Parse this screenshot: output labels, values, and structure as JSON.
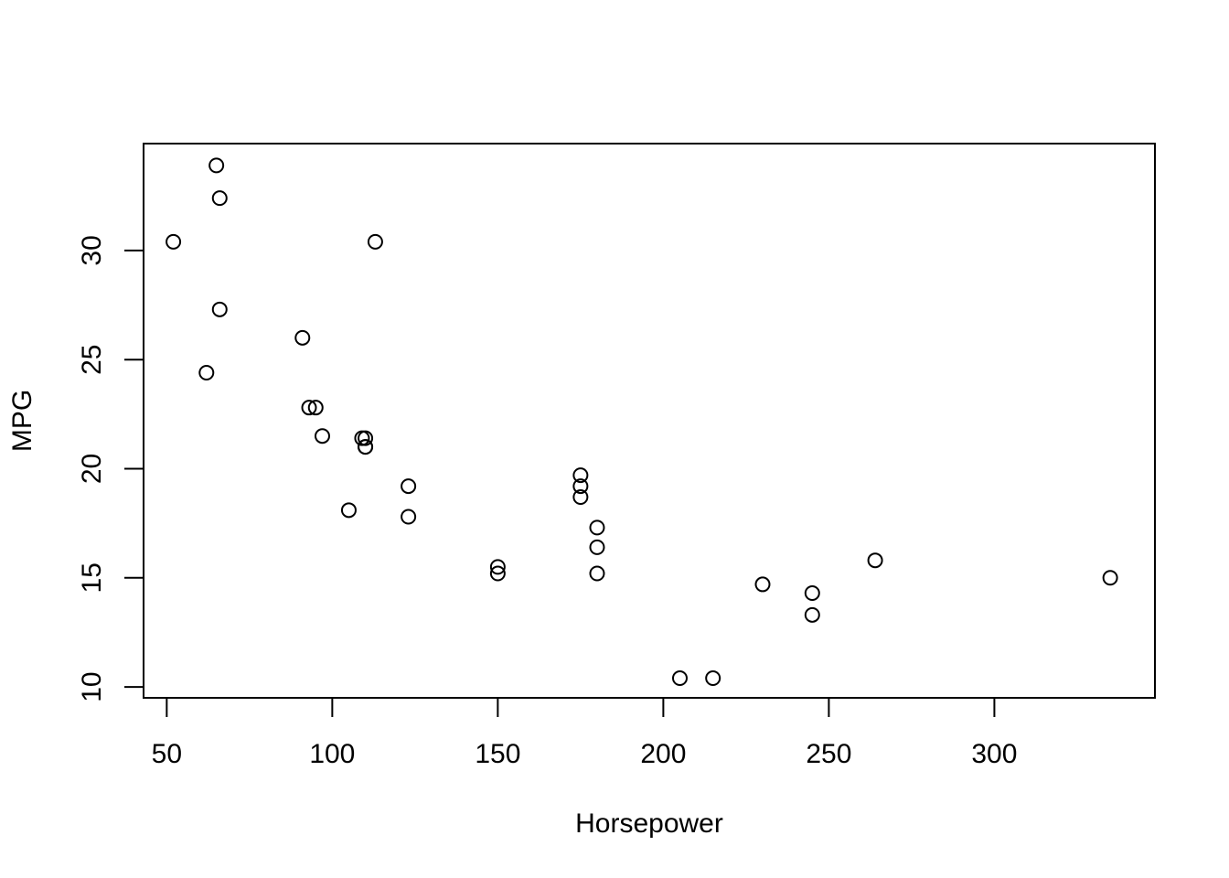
{
  "chart_data": {
    "type": "scatter",
    "title": "",
    "xlabel": "Horsepower",
    "ylabel": "MPG",
    "xlim": [
      43,
      348.5
    ],
    "ylim": [
      9.5,
      34.9
    ],
    "xticks": [
      50,
      100,
      150,
      200,
      250,
      300
    ],
    "yticks": [
      10,
      15,
      20,
      25,
      30
    ],
    "grid": false,
    "legend": "none",
    "marker": "open-circle",
    "color": "#000000",
    "points": [
      {
        "x": 110,
        "y": 21.0
      },
      {
        "x": 110,
        "y": 21.0
      },
      {
        "x": 93,
        "y": 22.8
      },
      {
        "x": 110,
        "y": 21.4
      },
      {
        "x": 175,
        "y": 18.7
      },
      {
        "x": 105,
        "y": 18.1
      },
      {
        "x": 245,
        "y": 14.3
      },
      {
        "x": 62,
        "y": 24.4
      },
      {
        "x": 95,
        "y": 22.8
      },
      {
        "x": 123,
        "y": 19.2
      },
      {
        "x": 123,
        "y": 17.8
      },
      {
        "x": 180,
        "y": 16.4
      },
      {
        "x": 180,
        "y": 17.3
      },
      {
        "x": 180,
        "y": 15.2
      },
      {
        "x": 205,
        "y": 10.4
      },
      {
        "x": 215,
        "y": 10.4
      },
      {
        "x": 230,
        "y": 14.7
      },
      {
        "x": 66,
        "y": 32.4
      },
      {
        "x": 52,
        "y": 30.4
      },
      {
        "x": 65,
        "y": 33.9
      },
      {
        "x": 97,
        "y": 21.5
      },
      {
        "x": 150,
        "y": 15.5
      },
      {
        "x": 150,
        "y": 15.2
      },
      {
        "x": 245,
        "y": 13.3
      },
      {
        "x": 175,
        "y": 19.2
      },
      {
        "x": 66,
        "y": 27.3
      },
      {
        "x": 91,
        "y": 26.0
      },
      {
        "x": 113,
        "y": 30.4
      },
      {
        "x": 264,
        "y": 15.8
      },
      {
        "x": 175,
        "y": 19.7
      },
      {
        "x": 335,
        "y": 15.0
      },
      {
        "x": 109,
        "y": 21.4
      }
    ]
  }
}
